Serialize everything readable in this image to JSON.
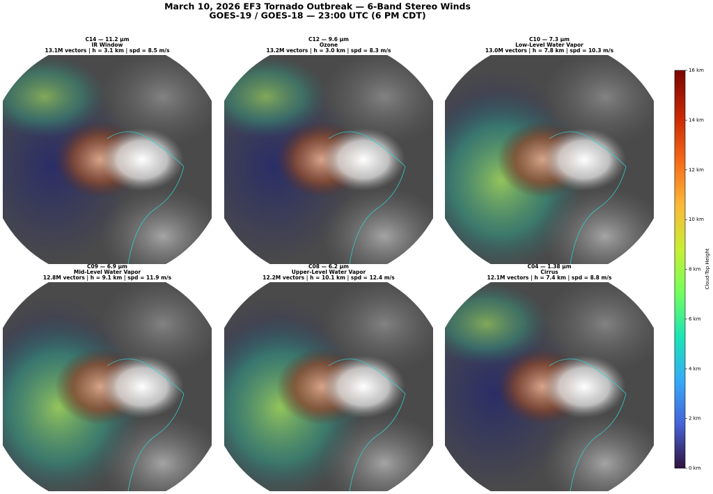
{
  "header": {
    "title": "March 10, 2026 EF3 Tornado Outbreak — 6-Band Stereo Winds",
    "subtitle": "GOES-19 / GOES-18 — 23:00 UTC (6 PM CDT)"
  },
  "panels": [
    {
      "band": "C14 — 11.2 µm",
      "name": "IR Window",
      "stats": "13.1M vectors | h = 3.1 km | spd = 8.5 m/s"
    },
    {
      "band": "C12 — 9.6 µm",
      "name": "Ozone",
      "stats": "13.2M vectors | h = 3.0 km | spd = 8.3 m/s"
    },
    {
      "band": "C10 — 7.3 µm",
      "name": "Low-Level Water Vapor",
      "stats": "13.0M vectors | h = 7.8 km | spd = 10.3 m/s"
    },
    {
      "band": "C09 — 6.9 µm",
      "name": "Mid-Level Water Vapor",
      "stats": "12.8M vectors | h = 9.1 km | spd = 11.9 m/s"
    },
    {
      "band": "C08 — 6.2 µm",
      "name": "Upper-Level Water Vapor",
      "stats": "12.2M vectors | h = 10.1 km | spd = 12.4 m/s"
    },
    {
      "band": "C04 — 1.38 µm",
      "name": "Cirrus",
      "stats": "12.1M vectors | h = 7.4 km | spd = 8.8 m/s"
    }
  ],
  "colorbar": {
    "label": "Cloud-Top Height",
    "lim": [
      0,
      16
    ],
    "ticks": [
      {
        "value": 0,
        "label": "0 km"
      },
      {
        "value": 2,
        "label": "2 km"
      },
      {
        "value": 4,
        "label": "4 km"
      },
      {
        "value": 6,
        "label": "6 km"
      },
      {
        "value": 8,
        "label": "8 km"
      },
      {
        "value": 10,
        "label": "10 km"
      },
      {
        "value": 12,
        "label": "12 km"
      },
      {
        "value": 14,
        "label": "14 km"
      },
      {
        "value": 16,
        "label": "16 km"
      }
    ]
  }
}
